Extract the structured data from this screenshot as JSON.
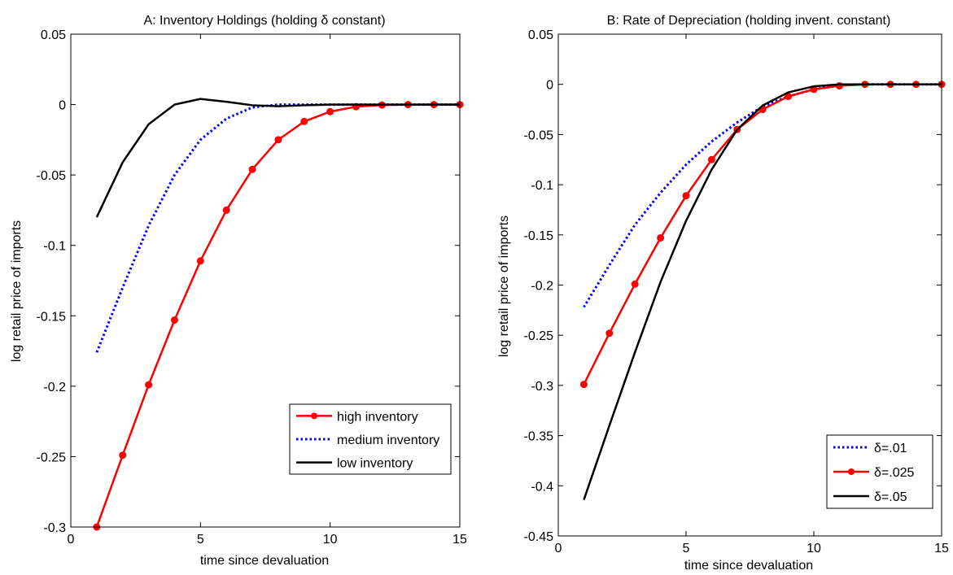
{
  "chart_data": [
    {
      "type": "line",
      "title": "A:  Inventory Holdings (holding δ constant)",
      "xlabel": "time since devaluation",
      "ylabel": "log retail price of imports",
      "xlim": [
        0,
        15
      ],
      "ylim": [
        -0.3,
        0.05
      ],
      "xticks": [
        0,
        5,
        10,
        15
      ],
      "yticks": [
        -0.3,
        -0.25,
        -0.2,
        -0.15,
        -0.1,
        -0.05,
        0,
        0.05
      ],
      "ytick_labels": [
        "-0.3",
        "-0.25",
        "-0.2",
        "-0.15",
        "-0.1",
        "-0.05",
        "0",
        "0.05"
      ],
      "legend_position": "lower-right",
      "x": [
        1,
        2,
        3,
        4,
        5,
        6,
        7,
        8,
        9,
        10,
        11,
        12,
        13,
        14,
        15
      ],
      "series": [
        {
          "name": "high inventory",
          "color": "#ff0000",
          "style": "solid",
          "markers": true,
          "values": [
            -0.3,
            -0.249,
            -0.199,
            -0.153,
            -0.111,
            -0.075,
            -0.046,
            -0.025,
            -0.012,
            -0.005,
            -0.0015,
            -0.0003,
            0,
            0,
            0
          ]
        },
        {
          "name": "medium inventory",
          "color": "#0000ff",
          "style": "dotted",
          "markers": false,
          "values": [
            -0.176,
            -0.13,
            -0.086,
            -0.05,
            -0.025,
            -0.01,
            -0.002,
            0,
            0,
            0,
            0,
            0,
            0,
            0,
            0
          ]
        },
        {
          "name": "low inventory",
          "color": "#000000",
          "style": "solid",
          "markers": false,
          "values": [
            -0.08,
            -0.041,
            -0.014,
            0,
            0.004,
            0.002,
            -0.0005,
            -0.0012,
            -0.0005,
            0,
            0,
            0,
            0,
            0,
            0
          ]
        }
      ]
    },
    {
      "type": "line",
      "title": "B: Rate of Depreciation (holding invent. constant)",
      "xlabel": "time since devaluation",
      "ylabel": "log retail price of imports",
      "xlim": [
        0,
        15
      ],
      "ylim": [
        -0.45,
        0.05
      ],
      "xticks": [
        0,
        5,
        10,
        15
      ],
      "yticks": [
        -0.45,
        -0.4,
        -0.35,
        -0.3,
        -0.25,
        -0.2,
        -0.15,
        -0.1,
        -0.05,
        0,
        0.05
      ],
      "ytick_labels": [
        "-0.45",
        "-0.4",
        "-0.35",
        "-0.3",
        "-0.25",
        "-0.2",
        "-0.15",
        "-0.1",
        "-0.05",
        "0",
        "0.05"
      ],
      "legend_position": "lower-right",
      "x": [
        1,
        2,
        3,
        4,
        5,
        6,
        7,
        8,
        9,
        10,
        11,
        12,
        13,
        14,
        15
      ],
      "series": [
        {
          "name": "δ=.01",
          "color": "#0000ff",
          "style": "dotted",
          "markers": false,
          "values": [
            -0.222,
            -0.18,
            -0.14,
            -0.108,
            -0.08,
            -0.057,
            -0.038,
            -0.022,
            -0.012,
            -0.005,
            -0.001,
            0,
            0,
            0,
            0
          ]
        },
        {
          "name": "δ=.025",
          "color": "#ff0000",
          "style": "solid",
          "markers": true,
          "values": [
            -0.299,
            -0.248,
            -0.199,
            -0.153,
            -0.111,
            -0.075,
            -0.045,
            -0.025,
            -0.012,
            -0.005,
            -0.0015,
            0,
            0,
            0,
            0
          ]
        },
        {
          "name": "δ=.05",
          "color": "#000000",
          "style": "solid",
          "markers": false,
          "values": [
            -0.414,
            -0.34,
            -0.267,
            -0.197,
            -0.136,
            -0.085,
            -0.045,
            -0.021,
            -0.008,
            -0.002,
            0,
            0,
            0,
            0,
            0
          ]
        }
      ]
    }
  ]
}
